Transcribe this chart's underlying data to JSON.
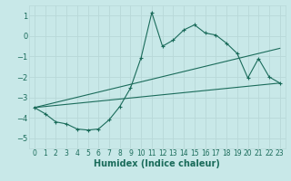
{
  "xlabel": "Humidex (Indice chaleur)",
  "background_color": "#c8e8e8",
  "grid_color": "#b8d8d8",
  "line_color": "#1a6b5a",
  "xlim": [
    -0.5,
    23.5
  ],
  "ylim": [
    -5.5,
    1.5
  ],
  "yticks": [
    1,
    0,
    -1,
    -2,
    -3,
    -4,
    -5
  ],
  "xticks": [
    0,
    1,
    2,
    3,
    4,
    5,
    6,
    7,
    8,
    9,
    10,
    11,
    12,
    13,
    14,
    15,
    16,
    17,
    18,
    19,
    20,
    21,
    22,
    23
  ],
  "line1_x": [
    0,
    1,
    2,
    3,
    4,
    5,
    6,
    7,
    8,
    9,
    10,
    11,
    12,
    13,
    14,
    15,
    16,
    17,
    18,
    19,
    20,
    21,
    22,
    23
  ],
  "line1_y": [
    -3.5,
    -3.8,
    -4.2,
    -4.3,
    -4.55,
    -4.6,
    -4.55,
    -4.1,
    -3.45,
    -2.55,
    -1.05,
    1.15,
    -0.5,
    -0.2,
    0.3,
    0.55,
    0.15,
    0.05,
    -0.35,
    -0.85,
    -2.05,
    -1.1,
    -2.0,
    -2.3
  ],
  "line2_x": [
    0,
    23
  ],
  "line2_y": [
    -3.5,
    -0.6
  ],
  "line3_x": [
    0,
    23
  ],
  "line3_y": [
    -3.5,
    -2.3
  ],
  "figsize": [
    3.2,
    2.0
  ],
  "dpi": 100,
  "tick_fontsize": 5.5,
  "xlabel_fontsize": 7
}
